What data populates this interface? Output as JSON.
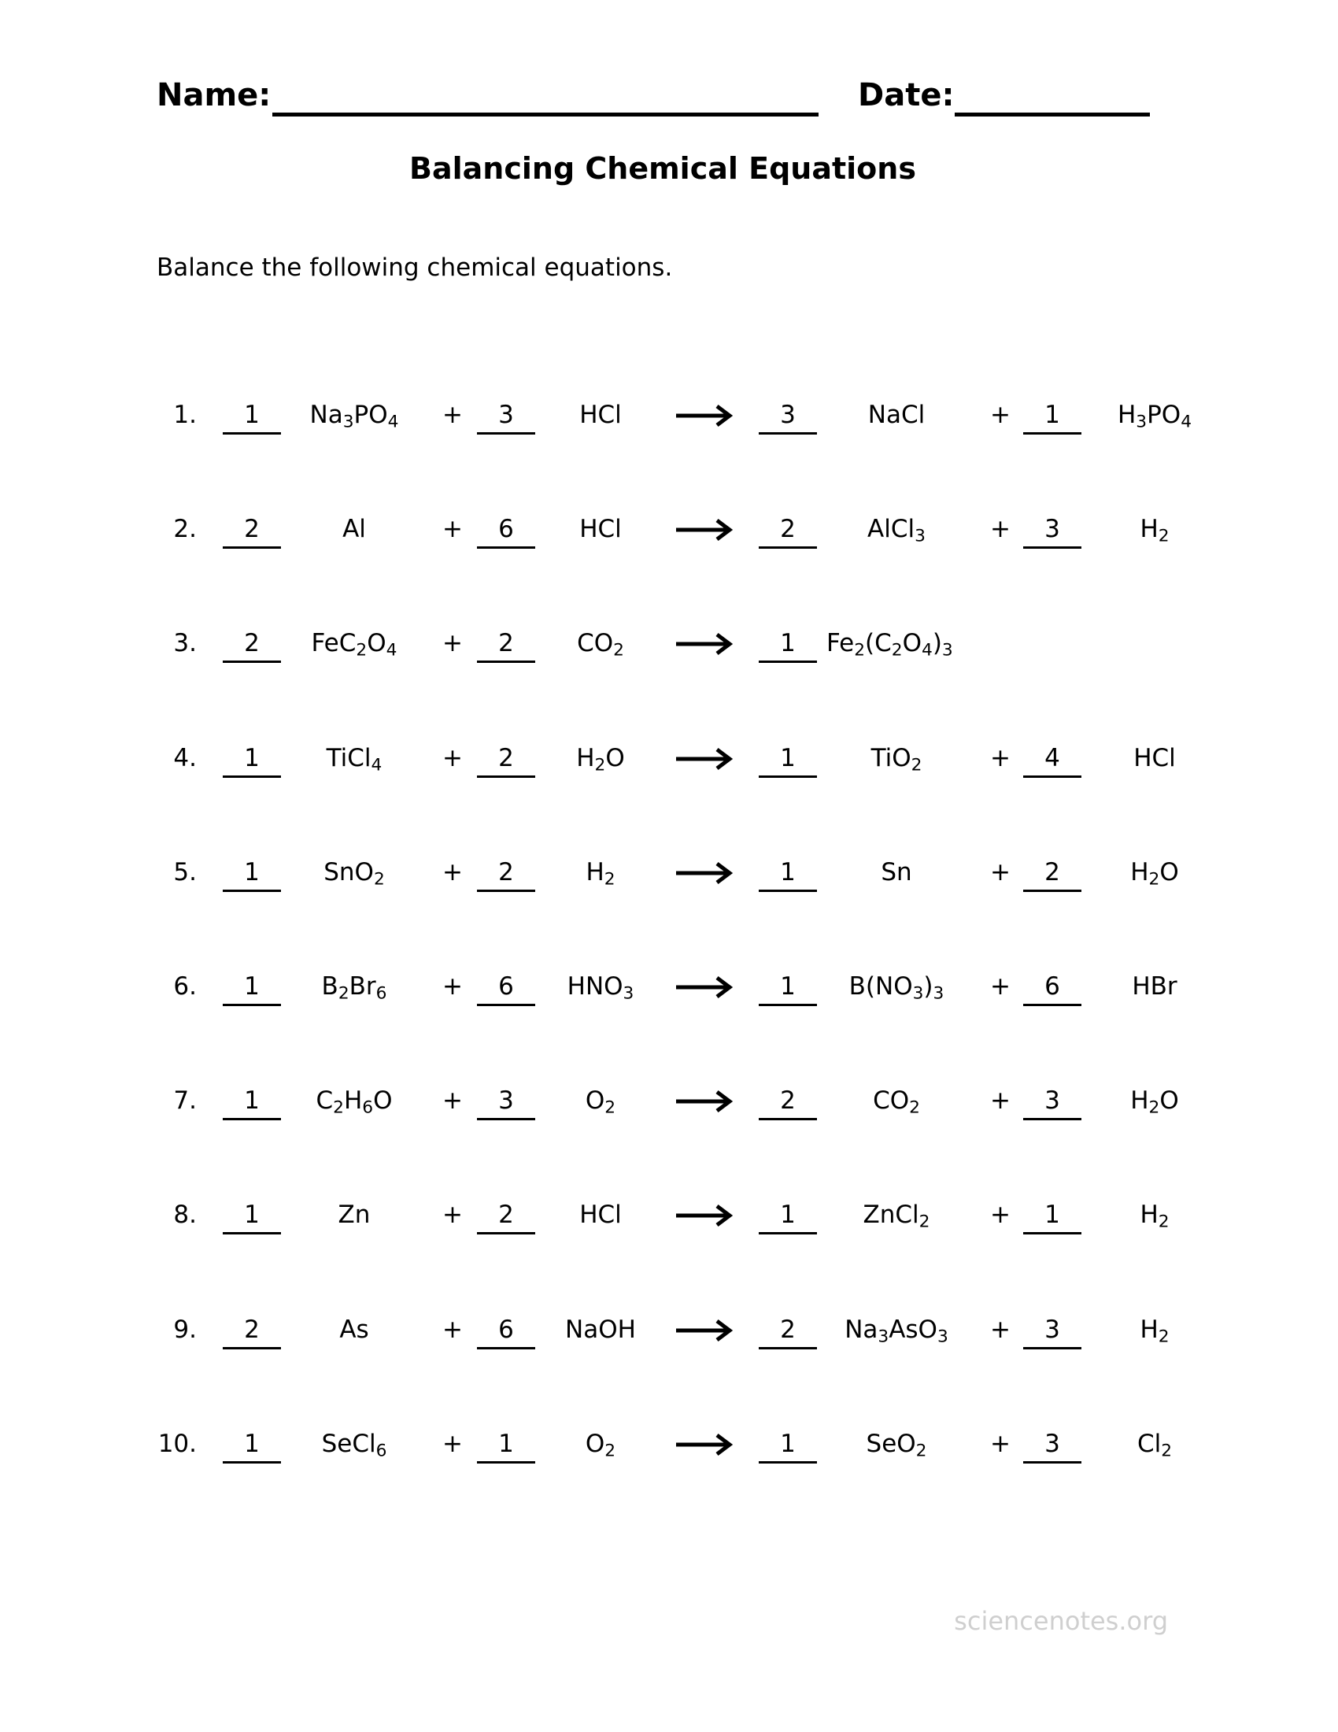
{
  "header": {
    "name_label": "Name:",
    "date_label": "Date:"
  },
  "title": "Balancing Chemical Equations",
  "instructions": "Balance the following chemical equations.",
  "equations": [
    {
      "number": "1.",
      "reactants": [
        {
          "coef": "1",
          "formula": "Na3PO4"
        },
        {
          "coef": "3",
          "formula": "HCl"
        }
      ],
      "products": [
        {
          "coef": "3",
          "formula": "NaCl"
        },
        {
          "coef": "1",
          "formula": "H3PO4"
        }
      ]
    },
    {
      "number": "2.",
      "reactants": [
        {
          "coef": "2",
          "formula": "Al"
        },
        {
          "coef": "6",
          "formula": "HCl"
        }
      ],
      "products": [
        {
          "coef": "2",
          "formula": "AlCl3"
        },
        {
          "coef": "3",
          "formula": "H2"
        }
      ]
    },
    {
      "number": "3.",
      "reactants": [
        {
          "coef": "2",
          "formula": "FeC2O4"
        },
        {
          "coef": "2",
          "formula": "CO2"
        }
      ],
      "products": [
        {
          "coef": "1",
          "formula": "Fe2(C2O4)3"
        }
      ]
    },
    {
      "number": "4.",
      "reactants": [
        {
          "coef": "1",
          "formula": "TiCl4"
        },
        {
          "coef": "2",
          "formula": "H2O"
        }
      ],
      "products": [
        {
          "coef": "1",
          "formula": "TiO2"
        },
        {
          "coef": "4",
          "formula": "HCl"
        }
      ]
    },
    {
      "number": "5.",
      "reactants": [
        {
          "coef": "1",
          "formula": "SnO2"
        },
        {
          "coef": "2",
          "formula": "H2"
        }
      ],
      "products": [
        {
          "coef": "1",
          "formula": "Sn"
        },
        {
          "coef": "2",
          "formula": "H2O"
        }
      ]
    },
    {
      "number": "6.",
      "reactants": [
        {
          "coef": "1",
          "formula": "B2Br6"
        },
        {
          "coef": "6",
          "formula": "HNO3"
        }
      ],
      "products": [
        {
          "coef": "1",
          "formula": "B(NO3)3"
        },
        {
          "coef": "6",
          "formula": "HBr"
        }
      ]
    },
    {
      "number": "7.",
      "reactants": [
        {
          "coef": "1",
          "formula": "C2H6O"
        },
        {
          "coef": "3",
          "formula": "O2"
        }
      ],
      "products": [
        {
          "coef": "2",
          "formula": "CO2"
        },
        {
          "coef": "3",
          "formula": "H2O"
        }
      ]
    },
    {
      "number": "8.",
      "reactants": [
        {
          "coef": "1",
          "formula": "Zn"
        },
        {
          "coef": "2",
          "formula": "HCl"
        }
      ],
      "products": [
        {
          "coef": "1",
          "formula": "ZnCl2"
        },
        {
          "coef": "1",
          "formula": "H2"
        }
      ]
    },
    {
      "number": "9.",
      "reactants": [
        {
          "coef": "2",
          "formula": "As"
        },
        {
          "coef": "6",
          "formula": "NaOH"
        }
      ],
      "products": [
        {
          "coef": "2",
          "formula": "Na3AsO3"
        },
        {
          "coef": "3",
          "formula": "H2"
        }
      ]
    },
    {
      "number": "10.",
      "reactants": [
        {
          "coef": "1",
          "formula": "SeCl6"
        },
        {
          "coef": "1",
          "formula": "O2"
        }
      ],
      "products": [
        {
          "coef": "1",
          "formula": "SeO2"
        },
        {
          "coef": "3",
          "formula": "Cl2"
        }
      ]
    }
  ],
  "plus_sign": "+",
  "icons": {
    "arrow": "right-arrow-icon"
  },
  "watermark": "sciencenotes.org",
  "colors": {
    "text": "#000000",
    "watermark": "#cfcfcf"
  }
}
